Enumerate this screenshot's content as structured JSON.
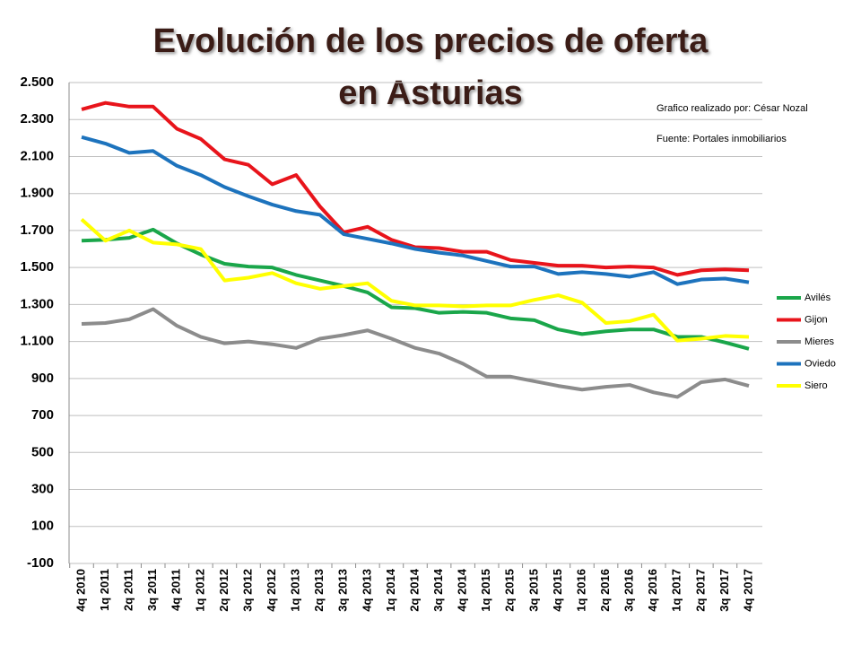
{
  "chart_data": {
    "type": "line",
    "title": [
      "Evolución de los precios de oferta",
      "en Asturias"
    ],
    "annotations": [
      "Grafico realizado por: César Nozal",
      "Fuente: Portales inmobiliarios"
    ],
    "categories": [
      "4q 2010",
      "1q 2011",
      "2q 2011",
      "3q 2011",
      "4q 2011",
      "1q 2012",
      "2q 2012",
      "3q 2012",
      "4q 2012",
      "1q 2013",
      "2q 2013",
      "3q 2013",
      "4q 2013",
      "1q 2014",
      "2q 2014",
      "3q 2014",
      "4q 2014",
      "1q 2015",
      "2q 2015",
      "3q 2015",
      "4q 2015",
      "1q 2016",
      "2q 2016",
      "3q 2016",
      "4q 2016",
      "1q 2017",
      "2q 2017",
      "3q 2017",
      "4q 2017"
    ],
    "series": [
      {
        "name": "Avilés",
        "color": "#1aa64a",
        "values": [
          1645,
          1650,
          1660,
          1705,
          1630,
          1570,
          1520,
          1505,
          1500,
          1460,
          1430,
          1400,
          1365,
          1285,
          1280,
          1255,
          1260,
          1255,
          1225,
          1215,
          1165,
          1140,
          1155,
          1165,
          1165,
          1125,
          1125,
          1095,
          1060
        ]
      },
      {
        "name": "Gijon",
        "color": "#e8141b",
        "values": [
          2355,
          2390,
          2370,
          2370,
          2250,
          2195,
          2085,
          2055,
          1950,
          2000,
          1830,
          1690,
          1720,
          1650,
          1610,
          1605,
          1585,
          1585,
          1540,
          1525,
          1510,
          1510,
          1500,
          1505,
          1500,
          1460,
          1485,
          1490,
          1485
        ]
      },
      {
        "name": "Mieres",
        "color": "#8c8c8c",
        "values": [
          1195,
          1200,
          1220,
          1275,
          1185,
          1125,
          1090,
          1100,
          1085,
          1065,
          1115,
          1135,
          1160,
          1115,
          1065,
          1035,
          980,
          910,
          910,
          885,
          860,
          840,
          855,
          865,
          825,
          800,
          880,
          895,
          860
        ]
      },
      {
        "name": "Oviedo",
        "color": "#1d73bd",
        "values": [
          2205,
          2170,
          2120,
          2130,
          2050,
          2000,
          1935,
          1885,
          1840,
          1805,
          1785,
          1680,
          1655,
          1630,
          1600,
          1580,
          1565,
          1535,
          1505,
          1505,
          1465,
          1475,
          1465,
          1450,
          1475,
          1410,
          1435,
          1440,
          1420
        ]
      },
      {
        "name": "Siero",
        "color": "#ffff00",
        "values": [
          1760,
          1645,
          1700,
          1635,
          1625,
          1600,
          1430,
          1445,
          1470,
          1415,
          1385,
          1400,
          1415,
          1320,
          1295,
          1295,
          1290,
          1295,
          1295,
          1325,
          1350,
          1310,
          1200,
          1210,
          1245,
          1105,
          1115,
          1130,
          1125
        ]
      }
    ],
    "ylim": [
      -100,
      2500
    ],
    "yticks": [
      -100,
      100,
      300,
      500,
      700,
      900,
      {
        "value": 1100,
        "label": "1.100"
      },
      {
        "value": 1300,
        "label": "1.300"
      },
      {
        "value": 1500,
        "label": "1.500"
      },
      {
        "value": 1700,
        "label": "1.700"
      },
      {
        "value": 1900,
        "label": "1.900"
      },
      {
        "value": 2100,
        "label": "2.100"
      },
      {
        "value": 2300,
        "label": "2.300"
      },
      {
        "value": 2500,
        "label": "2.500"
      }
    ],
    "grid": true,
    "legend": "right"
  }
}
